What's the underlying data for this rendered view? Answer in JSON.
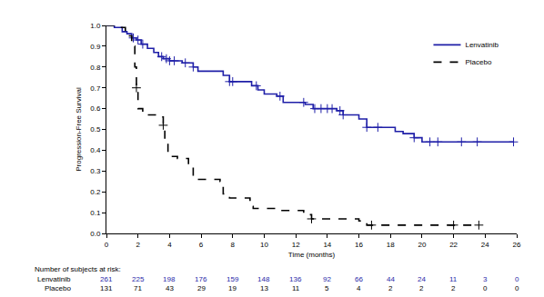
{
  "chart_data": {
    "type": "line",
    "xlabel": "Time (months)",
    "ylabel": "Progression-Free Survival",
    "xlim": [
      0,
      26
    ],
    "xticks": [
      0,
      2,
      4,
      6,
      8,
      10,
      12,
      14,
      16,
      18,
      20,
      22,
      24,
      26
    ],
    "ylim": [
      0,
      1
    ],
    "yticks": [
      {
        "value": 0,
        "label": "0.0"
      },
      0.1,
      0.2,
      0.3,
      0.4,
      0.5,
      0.6,
      0.7,
      0.8,
      0.9,
      {
        "value": 1,
        "label": "1.0"
      }
    ],
    "grid": false,
    "legend": "top right",
    "series": [
      {
        "name": "Lenvatinib",
        "color": "#1f1fa8",
        "line_style": "solid",
        "marker": "plus",
        "x": [
          0,
          0.5,
          1,
          1.3,
          1.6,
          1.9,
          2.2,
          2.6,
          3,
          3.3,
          3.6,
          4,
          4.8,
          5.5,
          5.8,
          7.4,
          7.8,
          9.2,
          9.6,
          10,
          10.8,
          11.2,
          12.6,
          13.1,
          14.6,
          15,
          16,
          16.5,
          18.3,
          18.8,
          19.5,
          20,
          25.8
        ],
        "values": [
          1.0,
          0.99,
          0.97,
          0.96,
          0.94,
          0.93,
          0.91,
          0.89,
          0.87,
          0.85,
          0.84,
          0.83,
          0.82,
          0.8,
          0.78,
          0.76,
          0.73,
          0.71,
          0.69,
          0.67,
          0.66,
          0.63,
          0.62,
          0.6,
          0.59,
          0.57,
          0.55,
          0.51,
          0.49,
          0.48,
          0.46,
          0.44,
          0.44
        ],
        "censor_x": [
          1.7,
          2.0,
          2.3,
          3.5,
          3.8,
          4.0,
          4.3,
          5.0,
          5.5,
          7.8,
          8.0,
          9.5,
          11.0,
          12.5,
          13.2,
          13.6,
          14.0,
          14.3,
          14.8,
          15.0,
          16.5,
          17.2,
          19.5,
          20.5,
          21.0,
          22.5,
          23.5,
          25.8
        ]
      },
      {
        "name": "Placebo",
        "color": "#000000",
        "line_style": "dashed",
        "marker": "plus",
        "x": [
          0,
          0.5,
          1.2,
          1.6,
          1.8,
          1.9,
          2.0,
          2.3,
          3.5,
          3.6,
          3.7,
          3.9,
          4.5,
          5.2,
          5.5,
          7.2,
          7.4,
          7.8,
          9.1,
          9.3,
          11,
          12.5,
          13,
          16,
          16.5,
          23.6
        ],
        "values": [
          1.0,
          0.99,
          0.95,
          0.9,
          0.8,
          0.7,
          0.6,
          0.57,
          0.56,
          0.52,
          0.44,
          0.37,
          0.36,
          0.33,
          0.26,
          0.25,
          0.19,
          0.17,
          0.13,
          0.12,
          0.11,
          0.09,
          0.07,
          0.06,
          0.04,
          0.04
        ],
        "censor_x": [
          1.9,
          3.6,
          13.0,
          16.8,
          22.0,
          23.6
        ]
      }
    ],
    "risk_table": {
      "title": "Number of subjects at risk:",
      "times": [
        0,
        2,
        4,
        6,
        8,
        10,
        12,
        14,
        16,
        18,
        20,
        22,
        24,
        26
      ],
      "rows": [
        {
          "name": "Lenvatinib",
          "color": "#1f1fa8",
          "values": [
            261,
            225,
            198,
            176,
            159,
            148,
            136,
            92,
            66,
            44,
            24,
            11,
            3,
            0
          ]
        },
        {
          "name": "Placebo",
          "color": "#000000",
          "values": [
            131,
            71,
            43,
            29,
            19,
            13,
            11,
            5,
            4,
            2,
            2,
            2,
            0,
            0
          ]
        }
      ]
    }
  }
}
